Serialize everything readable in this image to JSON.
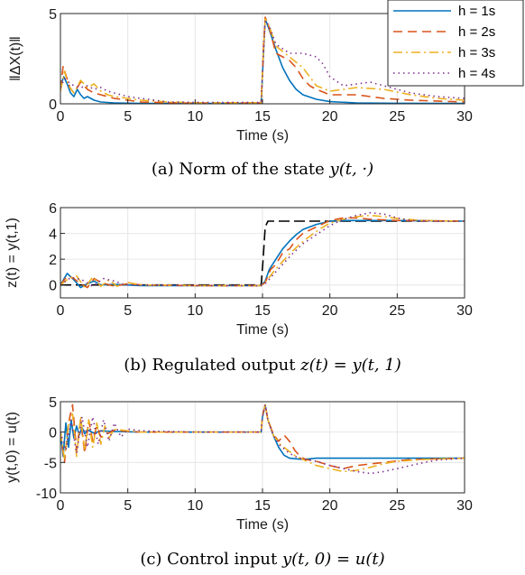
{
  "colors": {
    "h1": "#0072bd",
    "h2": "#d95319",
    "h3": "#edb120",
    "h4": "#7e2f8e",
    "reference": "#000000",
    "grid": "#e6e6e6"
  },
  "chart_data": [
    {
      "id": "a",
      "type": "line",
      "caption_prefix": "(a) Norm of the state",
      "caption_math": "y(t, ·)",
      "xlabel": "Time (s)",
      "ylabel": "‖ΔX(t)‖",
      "xlim": [
        0,
        30
      ],
      "ylim": [
        0,
        5
      ],
      "xticks": [
        0,
        5,
        10,
        15,
        20,
        25,
        30
      ],
      "yticks": [
        0,
        5
      ],
      "grid": true,
      "legend": {
        "position": "top-right",
        "entries": [
          "h = 1s",
          "h = 2s",
          "h = 3s",
          "h = 4s"
        ]
      },
      "series": [
        {
          "name": "h = 1s",
          "style": "solid",
          "color_key": "h1",
          "x": [
            0,
            0.25,
            0.5,
            0.75,
            1.0,
            1.25,
            1.5,
            1.75,
            2.0,
            2.5,
            3.0,
            4.0,
            6.0,
            10.0,
            14.9,
            15.1,
            15.2,
            15.5,
            16.0,
            16.5,
            17.0,
            17.5,
            18.0,
            19.0,
            20.0,
            22.0,
            25.0,
            30.0
          ],
          "y": [
            1.0,
            1.5,
            1.1,
            0.6,
            0.4,
            0.8,
            0.5,
            0.3,
            0.4,
            0.2,
            0.1,
            0.05,
            0.02,
            0.02,
            0.03,
            3.2,
            4.7,
            4.1,
            3.0,
            2.0,
            1.3,
            0.8,
            0.5,
            0.25,
            0.12,
            0.05,
            0.03,
            0.02
          ]
        },
        {
          "name": "h = 2s",
          "style": "dashed",
          "color_key": "h2",
          "x": [
            0,
            0.2,
            0.4,
            0.7,
            1.0,
            1.5,
            2.0,
            2.5,
            3.0,
            4.0,
            5.0,
            6.0,
            8.0,
            10.0,
            14.9,
            15.1,
            15.2,
            15.5,
            16.0,
            16.5,
            17.0,
            17.5,
            18.0,
            18.5,
            19.0,
            20.0,
            21.0,
            22.0,
            24.0,
            26.0,
            30.0
          ],
          "y": [
            0.8,
            2.1,
            1.6,
            0.9,
            0.6,
            1.2,
            0.8,
            0.6,
            0.5,
            0.3,
            0.2,
            0.1,
            0.06,
            0.04,
            0.05,
            3.5,
            4.8,
            4.2,
            2.8,
            2.6,
            2.4,
            2.0,
            1.4,
            1.0,
            0.8,
            0.5,
            0.5,
            0.5,
            0.3,
            0.2,
            0.1
          ]
        },
        {
          "name": "h = 3s",
          "style": "dashdot",
          "color_key": "h3",
          "x": [
            0,
            0.3,
            0.6,
            1.0,
            1.5,
            2.0,
            2.5,
            3.0,
            3.5,
            4.0,
            5.0,
            6.0,
            8.0,
            10.0,
            14.9,
            15.1,
            15.2,
            15.5,
            16.0,
            17.0,
            18.0,
            18.5,
            19.0,
            20.0,
            21.0,
            22.0,
            24.0,
            26.0,
            28.0,
            30.0
          ],
          "y": [
            0.7,
            1.8,
            1.0,
            0.6,
            1.3,
            0.9,
            1.1,
            0.7,
            0.5,
            0.4,
            0.3,
            0.2,
            0.1,
            0.06,
            0.06,
            3.4,
            4.7,
            4.3,
            3.2,
            2.6,
            2.0,
            1.5,
            1.0,
            0.7,
            0.8,
            0.9,
            0.8,
            0.5,
            0.3,
            0.2
          ]
        },
        {
          "name": "h = 4s",
          "style": "dotted",
          "color_key": "h4",
          "x": [
            0,
            0.3,
            0.6,
            1.0,
            1.5,
            2.0,
            2.5,
            3.0,
            3.5,
            4.0,
            5.0,
            6.0,
            8.0,
            10.0,
            14.9,
            15.1,
            15.2,
            15.5,
            16.0,
            17.0,
            18.0,
            19.0,
            19.5,
            20.0,
            21.0,
            22.0,
            23.0,
            24.0,
            26.0,
            28.0,
            30.0
          ],
          "y": [
            0.9,
            1.4,
            1.2,
            1.0,
            0.9,
            1.0,
            0.8,
            0.9,
            0.7,
            0.6,
            0.4,
            0.3,
            0.1,
            0.08,
            0.08,
            3.3,
            4.6,
            4.3,
            3.3,
            2.8,
            2.8,
            2.6,
            2.2,
            1.5,
            1.0,
            1.1,
            1.2,
            1.0,
            0.6,
            0.4,
            0.3
          ]
        }
      ]
    },
    {
      "id": "b",
      "type": "line",
      "caption_prefix": "(b) Regulated output",
      "caption_math": "z(t) = y(t, 1)",
      "xlabel": "Time (s)",
      "ylabel": "z(t) = y(t,1)",
      "xlim": [
        0,
        30
      ],
      "ylim": [
        -1,
        6
      ],
      "xticks": [
        0,
        5,
        10,
        15,
        20,
        25,
        30
      ],
      "yticks": [
        0,
        2,
        4,
        6
      ],
      "grid": true,
      "series": [
        {
          "name": "reference",
          "style": "longdash",
          "color_key": "reference",
          "x": [
            0,
            14.9,
            15.05,
            15.2,
            15.4,
            30
          ],
          "y": [
            0,
            0,
            2.0,
            4.5,
            4.95,
            4.95
          ]
        },
        {
          "name": "h = 1s",
          "style": "solid",
          "color_key": "h1",
          "x": [
            0,
            0.5,
            1.0,
            1.5,
            2.0,
            2.5,
            3.0,
            4.0,
            6.0,
            10.0,
            14.9,
            15.2,
            15.5,
            16.0,
            16.5,
            17.0,
            17.5,
            18.0,
            19.0,
            20.0,
            21.0,
            23.0,
            25.0,
            30.0
          ],
          "y": [
            0,
            0.9,
            0.4,
            -0.2,
            0.1,
            0.3,
            0.0,
            0.05,
            -0.05,
            -0.05,
            -0.05,
            0.3,
            1.2,
            2.0,
            2.8,
            3.4,
            3.9,
            4.3,
            4.7,
            4.95,
            5.0,
            5.0,
            5.0,
            4.95
          ]
        },
        {
          "name": "h = 2s",
          "style": "dashed",
          "color_key": "h2",
          "x": [
            0,
            0.5,
            1.0,
            1.5,
            2.0,
            2.5,
            3.0,
            4.0,
            5.0,
            6.0,
            10.0,
            14.9,
            15.2,
            15.6,
            16.0,
            16.5,
            17.0,
            17.5,
            18.0,
            19.0,
            20.0,
            21.0,
            22.0,
            23.0,
            25.0,
            30.0
          ],
          "y": [
            0,
            0.7,
            0.5,
            0.1,
            -0.2,
            0.5,
            0.2,
            -0.1,
            0.1,
            0.0,
            -0.05,
            -0.05,
            0.2,
            1.2,
            1.6,
            2.5,
            2.8,
            3.5,
            4.0,
            4.5,
            5.0,
            5.2,
            5.2,
            5.1,
            5.0,
            4.95
          ]
        },
        {
          "name": "h = 3s",
          "style": "dashdot",
          "color_key": "h3",
          "x": [
            0,
            0.6,
            1.2,
            1.8,
            2.4,
            3.0,
            3.6,
            4.2,
            5.0,
            6.0,
            10.0,
            14.9,
            15.3,
            15.8,
            16.3,
            17.0,
            17.7,
            18.4,
            19.2,
            20.0,
            21.0,
            22.0,
            23.0,
            24.0,
            25.0,
            27.0,
            30.0
          ],
          "y": [
            0,
            0.5,
            0.7,
            -0.2,
            0.6,
            -0.1,
            0.4,
            -0.1,
            0.2,
            0.0,
            -0.05,
            -0.05,
            0.3,
            1.0,
            1.6,
            2.4,
            3.1,
            3.7,
            4.3,
            4.8,
            5.1,
            5.3,
            5.4,
            5.3,
            5.15,
            5.0,
            4.95
          ]
        },
        {
          "name": "h = 4s",
          "style": "dotted",
          "color_key": "h4",
          "x": [
            0,
            0.8,
            1.6,
            2.4,
            3.2,
            4.0,
            4.8,
            6.0,
            10.0,
            14.9,
            15.3,
            15.8,
            16.5,
            17.2,
            18.0,
            19.0,
            20.0,
            21.0,
            22.0,
            23.0,
            24.0,
            25.0,
            26.0,
            28.0,
            30.0
          ],
          "y": [
            0,
            0.6,
            0.4,
            -0.1,
            0.5,
            0.3,
            0.0,
            0.0,
            -0.05,
            -0.05,
            0.2,
            0.8,
            1.6,
            2.4,
            3.2,
            3.9,
            4.6,
            5.1,
            5.4,
            5.6,
            5.5,
            5.2,
            5.0,
            4.95,
            4.95
          ]
        }
      ]
    },
    {
      "id": "c",
      "type": "line",
      "caption_prefix": "(c) Control input",
      "caption_math": "y(t, 0) = u(t)",
      "xlabel": "Time (s)",
      "ylabel": "y(t,0) = u(t)",
      "xlim": [
        0,
        30
      ],
      "ylim": [
        -10,
        5
      ],
      "xticks": [
        0,
        5,
        10,
        15,
        20,
        25,
        30
      ],
      "yticks": [
        -10,
        -5,
        0,
        5
      ],
      "grid": true,
      "series": [
        {
          "name": "h = 1s",
          "style": "solid",
          "color_key": "h1",
          "x": [
            0,
            0.2,
            0.4,
            0.6,
            0.8,
            1.0,
            1.2,
            1.4,
            1.6,
            1.8,
            2.0,
            2.5,
            3.0,
            4.0,
            6.0,
            10.0,
            14.9,
            15.0,
            15.2,
            15.4,
            15.8,
            16.2,
            16.6,
            17.0,
            17.5,
            18.0,
            19.0,
            20.0,
            22.0,
            25.0,
            30.0
          ],
          "y": [
            0,
            -4.0,
            1.5,
            -2.5,
            2.0,
            -1.0,
            1.0,
            -0.5,
            0.8,
            -0.3,
            0.4,
            -0.2,
            0.2,
            0.1,
            0.0,
            0.0,
            0.0,
            2.5,
            4.5,
            2.0,
            -0.5,
            -2.5,
            -3.8,
            -4.3,
            -4.4,
            -4.5,
            -4.3,
            -4.3,
            -4.3,
            -4.3,
            -4.3
          ]
        },
        {
          "name": "h = 2s",
          "style": "dashed",
          "color_key": "h2",
          "x": [
            0,
            0.3,
            0.6,
            0.9,
            1.2,
            1.5,
            1.8,
            2.1,
            2.4,
            2.7,
            3.0,
            4.0,
            5.0,
            6.0,
            10.0,
            14.9,
            15.0,
            15.2,
            15.4,
            15.8,
            16.2,
            16.6,
            17.0,
            17.4,
            17.8,
            18.2,
            19.0,
            20.0,
            21.0,
            22.0,
            24.0,
            26.0,
            28.0,
            30.0
          ],
          "y": [
            0,
            -5.0,
            1.5,
            4.5,
            -3.0,
            2.0,
            -3.5,
            2.0,
            -1.5,
            1.0,
            -0.8,
            0.3,
            0.1,
            0.0,
            0.0,
            0.0,
            2.8,
            4.5,
            2.0,
            -0.3,
            -1.5,
            -0.5,
            -1.5,
            -3.0,
            -4.0,
            -4.5,
            -4.8,
            -5.5,
            -6.0,
            -5.5,
            -5.0,
            -4.5,
            -4.4,
            -4.3
          ]
        },
        {
          "name": "h = 3s",
          "style": "dashdot",
          "color_key": "h3",
          "x": [
            0,
            0.3,
            0.6,
            0.9,
            1.2,
            1.5,
            1.8,
            2.1,
            2.4,
            2.7,
            3.0,
            3.3,
            3.6,
            4.0,
            5.0,
            6.0,
            10.0,
            14.9,
            15.0,
            15.2,
            15.4,
            15.8,
            16.3,
            17.0,
            17.5,
            18.0,
            18.5,
            19.0,
            20.0,
            21.0,
            22.0,
            23.0,
            24.0,
            25.0,
            27.0,
            30.0
          ],
          "y": [
            0,
            -4.5,
            1.5,
            3.0,
            -4.0,
            2.5,
            -3.0,
            2.0,
            -2.5,
            1.5,
            -2.0,
            1.0,
            -1.0,
            0.5,
            0.2,
            0.0,
            0.0,
            0.0,
            2.6,
            4.5,
            2.0,
            -0.5,
            -2.0,
            -3.2,
            -4.0,
            -4.5,
            -5.0,
            -5.5,
            -6.0,
            -6.5,
            -6.3,
            -5.8,
            -5.2,
            -4.8,
            -4.5,
            -4.3
          ]
        },
        {
          "name": "h = 4s",
          "style": "dotted",
          "color_key": "h4",
          "x": [
            0,
            0.4,
            0.8,
            1.2,
            1.6,
            2.0,
            2.4,
            2.8,
            3.2,
            3.6,
            4.0,
            4.5,
            5.0,
            6.0,
            10.0,
            14.9,
            15.0,
            15.2,
            15.4,
            15.8,
            16.3,
            17.0,
            17.6,
            18.2,
            19.0,
            20.0,
            21.0,
            22.0,
            23.0,
            24.0,
            25.0,
            26.0,
            27.0,
            28.0,
            30.0
          ],
          "y": [
            0,
            -3.0,
            2.0,
            -3.5,
            2.5,
            -2.5,
            2.5,
            -2.0,
            2.0,
            -1.5,
            1.5,
            -0.8,
            0.5,
            0.2,
            0.0,
            0.0,
            2.5,
            4.5,
            2.0,
            -0.5,
            -2.2,
            -3.5,
            -4.2,
            -4.5,
            -4.8,
            -5.5,
            -6.0,
            -6.5,
            -6.8,
            -6.5,
            -6.0,
            -5.5,
            -5.0,
            -4.6,
            -4.3
          ]
        }
      ]
    }
  ]
}
